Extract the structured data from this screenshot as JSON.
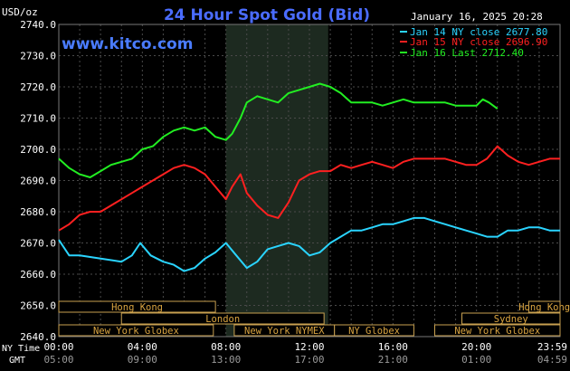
{
  "title": "24 Hour Spot Gold (Bid)",
  "datetime": "January 16, 2025 20:28",
  "brand": "www.kitco.com",
  "y_unit": "USD/oz",
  "x_row_labels": {
    "ny": "NY Time",
    "gmt": "GMT"
  },
  "legend": [
    {
      "text": "Jan 14 NY close 2677.80",
      "color": "#2ad4ff"
    },
    {
      "text": "Jan 15 NY close 2696.90",
      "color": "#ff2020"
    },
    {
      "text": "Jan 16 Last 2712.40",
      "color": "#22ee22"
    }
  ],
  "markets": {
    "hong_kong": "Hong Kong",
    "london": "London",
    "ny_globex": "New York Globex",
    "ny_nymex": "New York NYMEX",
    "ny_globex_short": "NY Globex",
    "sydney": "Sydney"
  },
  "chart_data": {
    "type": "line",
    "title": "24 Hour Spot Gold (Bid)",
    "ylabel": "USD/oz",
    "ylim": [
      2640,
      2740
    ],
    "xlim": [
      0,
      24
    ],
    "y_ticks": [
      "2740.0",
      "2730.0",
      "2720.0",
      "2710.0",
      "2700.0",
      "2690.0",
      "2680.0",
      "2670.0",
      "2660.0",
      "2650.0",
      "2640.0"
    ],
    "x_ticks_ny": [
      "00:00",
      "04:00",
      "08:00",
      "12:00",
      "16:00",
      "20:00",
      "23:59"
    ],
    "x_ticks_gmt": [
      "05:00",
      "09:00",
      "13:00",
      "17:00",
      "21:00",
      "01:00",
      "04:59"
    ],
    "shaded_hours": [
      8,
      12.9
    ],
    "grid": true,
    "legend_position": "top-right",
    "series": [
      {
        "name": "Jan 14 NY close 2677.80",
        "color": "#2ad4ff",
        "x": [
          0,
          0.5,
          1,
          2,
          3,
          3.5,
          3.9,
          4.4,
          5,
          5.5,
          6,
          6.5,
          7,
          7.5,
          8,
          8.5,
          9,
          9.5,
          10,
          10.5,
          11,
          11.5,
          12,
          12.5,
          13,
          13.5,
          14,
          14.5,
          15,
          15.5,
          16,
          16.5,
          17,
          17.5,
          18,
          18.5,
          19,
          19.5,
          20,
          20.5,
          21,
          21.5,
          22,
          22.5,
          23,
          23.5,
          24
        ],
        "y": [
          2671,
          2666,
          2666,
          2665,
          2664,
          2666,
          2670,
          2666,
          2664,
          2663,
          2661,
          2662,
          2665,
          2667,
          2670,
          2666,
          2662,
          2664,
          2668,
          2669,
          2670,
          2669,
          2666,
          2667,
          2670,
          2672,
          2674,
          2674,
          2675,
          2676,
          2676,
          2677,
          2678,
          2678,
          2677,
          2676,
          2675,
          2674,
          2673,
          2672,
          2672,
          2674,
          2674,
          2675,
          2675,
          2674,
          2674
        ]
      },
      {
        "name": "Jan 15 NY close 2696.90",
        "color": "#ff2020",
        "x": [
          0,
          0.5,
          1,
          1.5,
          2,
          2.5,
          3,
          3.5,
          4,
          4.5,
          5,
          5.5,
          6,
          6.5,
          7,
          7.5,
          8,
          8.3,
          8.7,
          9,
          9.5,
          10,
          10.5,
          11,
          11.5,
          12,
          12.5,
          13,
          13.5,
          14,
          14.5,
          15,
          15.5,
          16,
          16.5,
          17,
          17.5,
          18,
          18.5,
          19,
          19.5,
          20,
          20.5,
          21,
          21.5,
          22,
          22.5,
          23,
          23.5,
          24
        ],
        "y": [
          2674,
          2676,
          2679,
          2680,
          2680,
          2682,
          2684,
          2686,
          2688,
          2690,
          2692,
          2694,
          2695,
          2694,
          2692,
          2688,
          2684,
          2688,
          2692,
          2686,
          2682,
          2679,
          2678,
          2683,
          2690,
          2692,
          2693,
          2693,
          2695,
          2694,
          2695,
          2696,
          2695,
          2694,
          2696,
          2697,
          2697,
          2697,
          2697,
          2696,
          2695,
          2695,
          2697,
          2701,
          2698,
          2696,
          2695,
          2696,
          2697,
          2697
        ]
      },
      {
        "name": "Jan 16 Last 2712.40",
        "color": "#22ee22",
        "x": [
          0,
          0.5,
          1,
          1.5,
          2,
          2.5,
          3,
          3.5,
          4,
          4.5,
          5,
          5.5,
          6,
          6.5,
          7,
          7.5,
          8,
          8.3,
          8.7,
          9,
          9.5,
          10,
          10.5,
          11,
          11.5,
          12,
          12.5,
          13,
          13.5,
          14,
          14.5,
          15,
          15.5,
          16,
          16.5,
          17,
          17.5,
          18,
          18.5,
          19,
          19.5,
          20,
          20.3,
          20.6,
          21
        ],
        "y": [
          2697,
          2694,
          2692,
          2691,
          2693,
          2695,
          2696,
          2697,
          2700,
          2701,
          2704,
          2706,
          2707,
          2706,
          2707,
          2704,
          2703,
          2705,
          2710,
          2715,
          2717,
          2716,
          2715,
          2718,
          2719,
          2720,
          2721,
          2720,
          2718,
          2715,
          2715,
          2715,
          2714,
          2715,
          2716,
          2715,
          2715,
          2715,
          2715,
          2714,
          2714,
          2714,
          2716,
          2715,
          2713
        ]
      }
    ]
  }
}
